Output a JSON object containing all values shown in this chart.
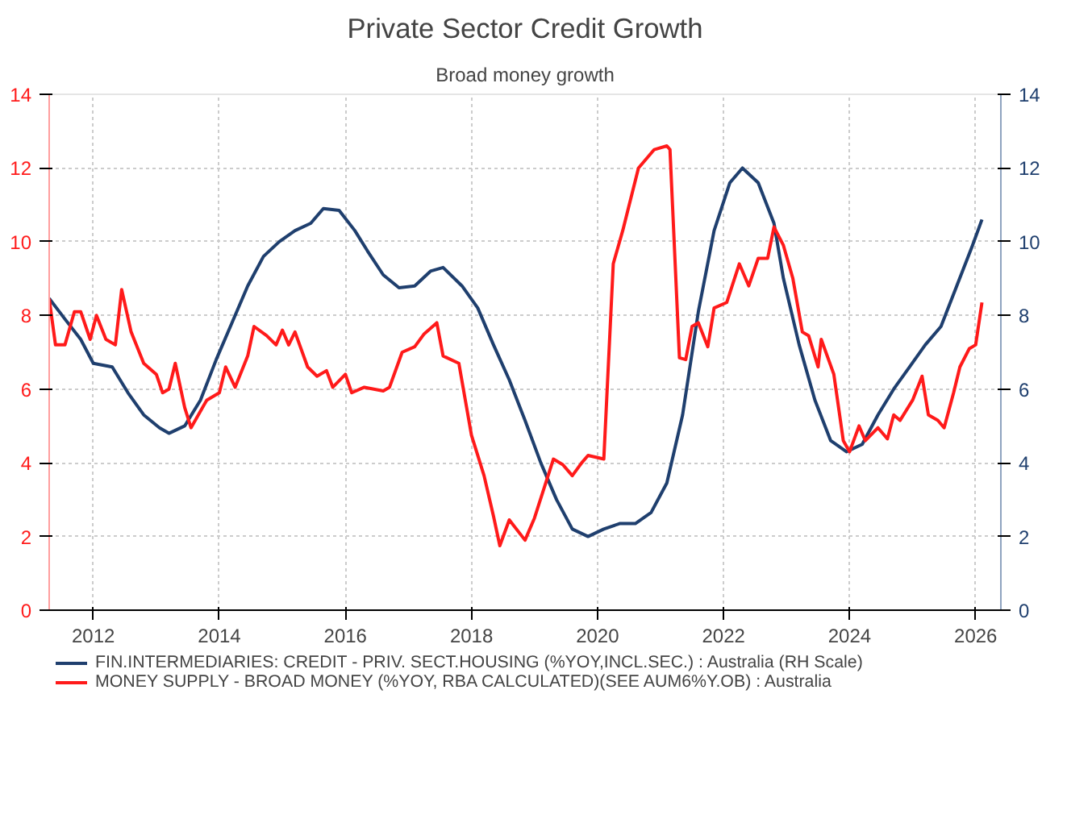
{
  "chart_data": {
    "type": "line",
    "title": "Private Sector Credit Growth",
    "subtitle": "Broad money growth",
    "xlim": [
      2011.3,
      2026.4
    ],
    "xticks": [
      2012,
      2014,
      2016,
      2018,
      2020,
      2022,
      2024,
      2026
    ],
    "ylim": [
      0,
      14
    ],
    "yticks": [
      0,
      2,
      4,
      6,
      8,
      10,
      12,
      14
    ],
    "y2lim": [
      0,
      14
    ],
    "y2ticks": [
      0,
      2,
      4,
      6,
      8,
      10,
      12,
      14
    ],
    "grid": true,
    "legend": "bottom",
    "marker": "none",
    "line_style": "solid",
    "series": [
      {
        "name": "FIN.INTERMEDIARIES: CREDIT - PRIV. SECT.HOUSING (%YOY,INCL.SEC.) : Australia (RH Scale)",
        "color": "#1f3f6e",
        "axis": "y2",
        "x": [
          2011.3,
          2011.55,
          2011.8,
          2012.0,
          2012.3,
          2012.55,
          2012.8,
          2013.05,
          2013.2,
          2013.45,
          2013.7,
          2013.95,
          2014.2,
          2014.45,
          2014.7,
          2014.95,
          2015.2,
          2015.45,
          2015.65,
          2015.9,
          2016.15,
          2016.35,
          2016.6,
          2016.85,
          2017.1,
          2017.35,
          2017.55,
          2017.85,
          2018.1,
          2018.35,
          2018.6,
          2018.85,
          2019.1,
          2019.35,
          2019.6,
          2019.85,
          2020.1,
          2020.35,
          2020.6,
          2020.85,
          2021.1,
          2021.35,
          2021.6,
          2021.85,
          2022.1,
          2022.3,
          2022.55,
          2022.8,
          2022.95,
          2023.2,
          2023.45,
          2023.7,
          2023.95,
          2024.2,
          2024.45,
          2024.7,
          2024.95,
          2025.2,
          2025.45,
          2025.7,
          2025.95,
          2026.1
        ],
        "values": [
          8.46,
          7.9,
          7.35,
          6.7,
          6.6,
          5.9,
          5.3,
          4.95,
          4.8,
          5.0,
          5.7,
          6.8,
          7.8,
          8.8,
          9.6,
          10.0,
          10.3,
          10.5,
          10.9,
          10.85,
          10.3,
          9.75,
          9.1,
          8.75,
          8.8,
          9.2,
          9.3,
          8.8,
          8.2,
          7.2,
          6.25,
          5.15,
          4.0,
          3.0,
          2.2,
          2.0,
          2.2,
          2.35,
          2.35,
          2.65,
          3.45,
          5.3,
          8.1,
          10.3,
          11.6,
          12.0,
          11.6,
          10.5,
          9.0,
          7.2,
          5.7,
          4.6,
          4.3,
          4.5,
          5.3,
          6.0,
          6.6,
          7.2,
          7.7,
          8.8,
          9.9,
          10.6
        ]
      },
      {
        "name": "MONEY SUPPLY - BROAD MONEY (%YOY, RBA CALCULATED)(SEE AUM6%Y.OB) : Australia",
        "color": "#ff1a1a",
        "x": [
          2011.3,
          2011.4,
          2011.55,
          2011.7,
          2011.8,
          2011.95,
          2012.05,
          2012.2,
          2012.35,
          2012.45,
          2012.6,
          2012.8,
          2013.0,
          2013.1,
          2013.2,
          2013.3,
          2013.45,
          2013.55,
          2013.8,
          2014.0,
          2014.1,
          2014.25,
          2014.45,
          2014.55,
          2014.75,
          2014.9,
          2015.0,
          2015.1,
          2015.2,
          2015.4,
          2015.55,
          2015.7,
          2015.8,
          2016.0,
          2016.1,
          2016.3,
          2016.6,
          2016.7,
          2016.9,
          2017.1,
          2017.25,
          2017.45,
          2017.55,
          2017.8,
          2018.0,
          2018.2,
          2018.35,
          2018.45,
          2018.6,
          2018.85,
          2019.0,
          2019.15,
          2019.3,
          2019.45,
          2019.6,
          2019.75,
          2019.85,
          2020.1,
          2020.25,
          2020.4,
          2020.65,
          2020.9,
          2021.1,
          2021.15,
          2021.3,
          2021.4,
          2021.5,
          2021.6,
          2021.75,
          2021.85,
          2022.05,
          2022.25,
          2022.4,
          2022.55,
          2022.7,
          2022.8,
          2022.95,
          2023.1,
          2023.25,
          2023.35,
          2023.5,
          2023.55,
          2023.75,
          2023.9,
          2024.0,
          2024.15,
          2024.25,
          2024.45,
          2024.6,
          2024.7,
          2024.8,
          2025.0,
          2025.15,
          2025.25,
          2025.4,
          2025.5,
          2025.65,
          2025.75,
          2025.9,
          2026.0,
          2026.1
        ],
        "values": [
          8.45,
          7.2,
          7.2,
          8.1,
          8.1,
          7.35,
          8.0,
          7.35,
          7.2,
          8.7,
          7.55,
          6.7,
          6.4,
          5.9,
          6.0,
          6.7,
          5.5,
          4.95,
          5.7,
          5.9,
          6.6,
          6.05,
          6.9,
          7.7,
          7.45,
          7.2,
          7.6,
          7.2,
          7.55,
          6.6,
          6.35,
          6.5,
          6.05,
          6.4,
          5.9,
          6.05,
          5.95,
          6.05,
          7.0,
          7.15,
          7.5,
          7.8,
          6.9,
          6.7,
          4.75,
          3.65,
          2.55,
          1.75,
          2.45,
          1.9,
          2.5,
          3.3,
          4.1,
          3.95,
          3.65,
          4.0,
          4.2,
          4.1,
          9.4,
          10.3,
          12.0,
          12.5,
          12.6,
          12.5,
          6.85,
          6.8,
          7.7,
          7.8,
          7.15,
          8.2,
          8.35,
          9.4,
          8.8,
          9.55,
          9.55,
          10.4,
          9.9,
          9.0,
          7.55,
          7.45,
          6.6,
          7.35,
          6.4,
          4.6,
          4.3,
          5.0,
          4.6,
          4.95,
          4.65,
          5.3,
          5.15,
          5.7,
          6.35,
          5.3,
          5.15,
          4.95,
          5.9,
          6.6,
          7.1,
          7.2,
          8.35
        ]
      }
    ]
  }
}
